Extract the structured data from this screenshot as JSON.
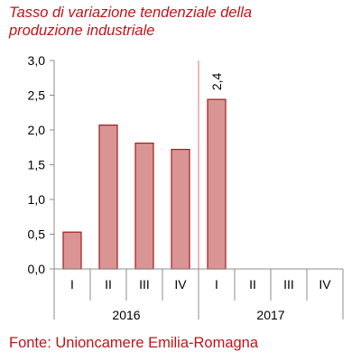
{
  "colors": {
    "title": "#c0141a",
    "bar_fill": "#d99594",
    "bar_stroke": "#a8191f",
    "separator": "#e07070",
    "axis": "#8c8c8c",
    "grid": "#d9d9d9",
    "source": "#c0141a"
  },
  "chart_data": {
    "type": "bar",
    "title_lines": [
      "Tasso di variazione tendenziale della",
      "produzione industriale"
    ],
    "categories": [
      "I",
      "II",
      "III",
      "IV",
      "I",
      "II",
      "III",
      "IV"
    ],
    "groups": [
      {
        "label": "2016",
        "count": 4
      },
      {
        "label": "2017",
        "count": 4
      }
    ],
    "values": [
      0.53,
      2.07,
      1.81,
      1.72,
      2.44,
      null,
      null,
      null
    ],
    "data_labels": [
      {
        "index": 4,
        "text": "2,4"
      }
    ],
    "yticks": [
      "0,0",
      "0,5",
      "1,0",
      "1,5",
      "2,0",
      "2,5",
      "3,0"
    ],
    "ylim": [
      0,
      3.0
    ],
    "ystep": 0.5,
    "grid": false,
    "legend": "none"
  },
  "source": "Fonte: Unioncamere Emilia-Romagna"
}
